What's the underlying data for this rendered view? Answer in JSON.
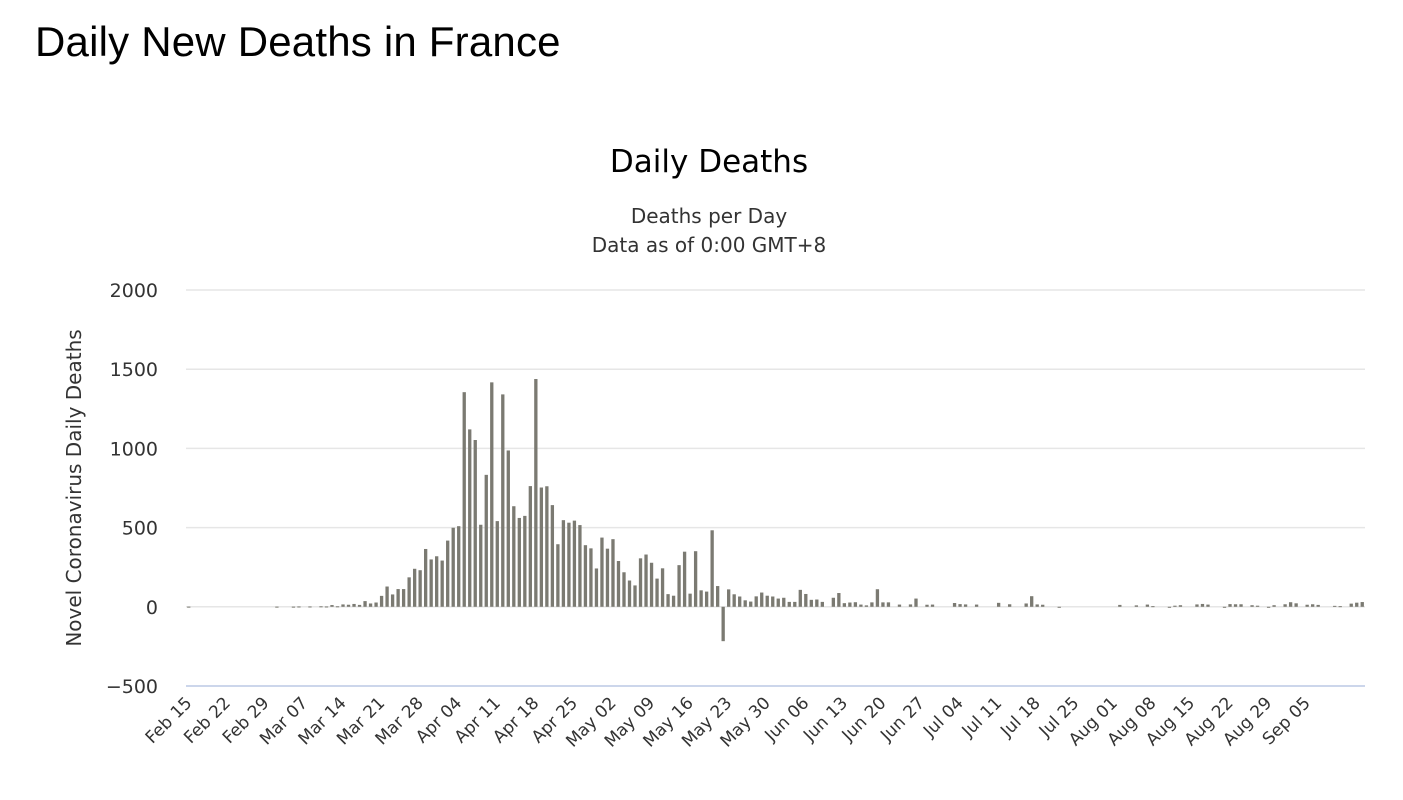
{
  "page": {
    "title": "Daily New Deaths in France"
  },
  "chart_data": {
    "type": "bar",
    "title": "Daily Deaths",
    "subtitle_lines": [
      "Deaths per Day",
      "Data as of 0:00 GMT+8"
    ],
    "xlabel": "",
    "ylabel": "Novel Coronavirus Daily Deaths",
    "ylim": [
      -500,
      2000
    ],
    "yticks": [
      2000,
      1500,
      1000,
      500,
      0,
      -500
    ],
    "grid": true,
    "legend": "none",
    "bar_color": "#7b7a72",
    "grid_color": "#e6e6e6",
    "baseline_color": "#ccd6eb",
    "start_date": "Feb 15",
    "x_tick_labels": [
      "Feb 15",
      "Feb 22",
      "Feb 29",
      "Mar 07",
      "Mar 14",
      "Mar 21",
      "Mar 28",
      "Apr 04",
      "Apr 11",
      "Apr 18",
      "Apr 25",
      "May 02",
      "May 09",
      "May 16",
      "May 23",
      "May 30",
      "Jun 06",
      "Jun 13",
      "Jun 20",
      "Jun 27",
      "Jul 04",
      "Jul 11",
      "Jul 18",
      "Jul 25",
      "Aug 01",
      "Aug 08",
      "Aug 15",
      "Aug 22",
      "Aug 29",
      "Sep 05"
    ],
    "x_tick_interval_days": 7,
    "values": [
      1,
      0,
      0,
      0,
      0,
      0,
      0,
      0,
      0,
      0,
      0,
      0,
      0,
      0,
      0,
      0,
      1,
      0,
      0,
      1,
      2,
      0,
      2,
      0,
      3,
      2,
      11,
      3,
      15,
      13,
      18,
      12,
      36,
      21,
      27,
      69,
      128,
      78,
      112,
      112,
      186,
      240,
      231,
      365,
      299,
      319,
      292,
      418,
      499,
      509,
      1355,
      1120,
      1053,
      518,
      833,
      1417,
      541,
      1341,
      987,
      635,
      561,
      574,
      762,
      1438,
      753,
      761,
      642,
      395,
      547,
      531,
      544,
      516,
      389,
      369,
      242,
      437,
      367,
      427,
      289,
      218,
      166,
      135,
      306,
      330,
      278,
      178,
      243,
      80,
      70,
      263,
      348,
      83,
      351,
      104,
      96,
      483,
      131,
      -217,
      110,
      79,
      65,
      41,
      33,
      66,
      90,
      70,
      65,
      52,
      57,
      31,
      31,
      107,
      81,
      44,
      46,
      31,
      0,
      57,
      87,
      23,
      27,
      29,
      14,
      9,
      28,
      111,
      28,
      28,
      0,
      14,
      0,
      15,
      52,
      0,
      13,
      14,
      0,
      0,
      0,
      24,
      17,
      15,
      0,
      14,
      0,
      0,
      0,
      25,
      0,
      16,
      0,
      0,
      21,
      67,
      15,
      13,
      0,
      0,
      -5,
      0,
      0,
      0,
      0,
      0,
      0,
      0,
      0,
      0,
      0,
      12,
      0,
      0,
      9,
      0,
      14,
      4,
      0,
      0,
      -3,
      7,
      10,
      0,
      0,
      15,
      18,
      14,
      0,
      0,
      -2,
      17,
      16,
      16,
      0,
      10,
      7,
      0,
      -3,
      10,
      0,
      16,
      29,
      22,
      0,
      13,
      16,
      12,
      0,
      0,
      6,
      4,
      0,
      20,
      26,
      30
    ]
  }
}
